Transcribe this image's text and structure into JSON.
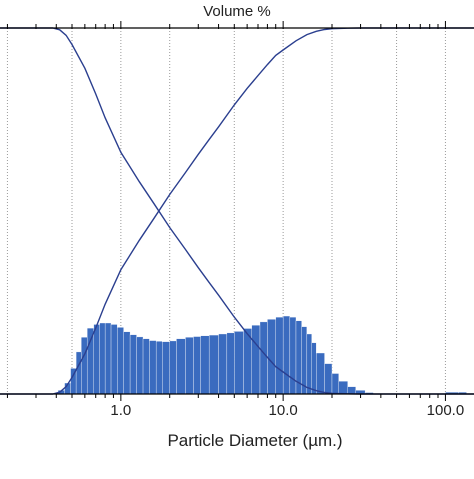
{
  "chart_data": {
    "type": "bar",
    "title": "Volume %",
    "xlabel": "Particle Diameter (µm.)",
    "ylabel": "",
    "x_scale": "log",
    "xlim": [
      0.18,
      150
    ],
    "ylim": [
      0,
      100
    ],
    "grid": "vertical dotted",
    "x_tick_labels": [
      "1.0",
      "10.0",
      "100.0"
    ],
    "x_tick_values": [
      1,
      10,
      100
    ],
    "colors": {
      "bars": "#3a6bbf",
      "curves": "#2b3f8f",
      "grid": "#9a9a9a",
      "frame": "#000000"
    },
    "bars": {
      "name": "",
      "x_start": 0.41,
      "x_end": 135,
      "x": [
        0.41,
        0.45,
        0.49,
        0.53,
        0.57,
        0.62,
        0.68,
        0.74,
        0.8,
        0.87,
        0.95,
        1.04,
        1.14,
        1.25,
        1.37,
        1.5,
        1.65,
        1.8,
        2.0,
        2.2,
        2.5,
        2.8,
        3.1,
        3.5,
        4.0,
        4.5,
        5.0,
        5.7,
        6.4,
        7.2,
        8.0,
        9.0,
        10.0,
        11.0,
        12.0,
        13.0,
        14.0,
        15.0,
        16.0,
        18.0,
        20.0,
        22.0,
        25.0,
        28.0,
        32.0,
        36.0,
        40.0,
        60.0,
        80.0,
        100.0,
        120.0
      ],
      "values": [
        1.0,
        3.0,
        7.0,
        11.5,
        15.5,
        18.0,
        19.0,
        19.4,
        19.4,
        19.0,
        18.2,
        17.0,
        16.2,
        15.6,
        15.1,
        14.6,
        14.4,
        14.3,
        14.5,
        15.1,
        15.5,
        15.7,
        15.9,
        16.1,
        16.4,
        16.7,
        17.1,
        17.9,
        18.8,
        19.7,
        20.4,
        21.0,
        21.3,
        21.0,
        20.0,
        18.4,
        16.4,
        14.0,
        11.2,
        8.3,
        5.6,
        3.5,
        2.0,
        1.0,
        0.4,
        0.1,
        0.0,
        0.0,
        0.0,
        0.5,
        0.5
      ]
    },
    "series": [
      {
        "name": "",
        "x": [
          0.18,
          0.38,
          0.42,
          0.46,
          0.5,
          0.6,
          0.7,
          0.8,
          1.0,
          1.3,
          1.6,
          2.0,
          2.5,
          3.0,
          3.5,
          4.0,
          5.0,
          6.0,
          7.0,
          8.0,
          9.0,
          10.0,
          12.0,
          14.0,
          16.0,
          18.0,
          20.0,
          25.0,
          30.0,
          40.0,
          60.0,
          100.0,
          150.0
        ],
        "values": [
          100.0,
          100.0,
          99.5,
          98.0,
          95.5,
          89.0,
          82.0,
          75.5,
          66.0,
          58.0,
          52.0,
          45.5,
          39.5,
          34.5,
          30.5,
          27.0,
          21.0,
          16.5,
          13.0,
          10.0,
          7.5,
          6.0,
          3.5,
          1.8,
          0.9,
          0.4,
          0.2,
          0.05,
          0.0,
          0.0,
          0.0,
          0.0,
          0.0
        ]
      },
      {
        "name": "",
        "x": [
          0.18,
          0.38,
          0.42,
          0.46,
          0.5,
          0.6,
          0.7,
          0.8,
          1.0,
          1.3,
          1.6,
          2.0,
          2.5,
          3.0,
          3.5,
          4.0,
          5.0,
          6.0,
          7.0,
          8.0,
          9.0,
          10.0,
          12.0,
          14.0,
          16.0,
          18.0,
          20.0,
          25.0,
          30.0,
          40.0,
          60.0,
          100.0,
          150.0
        ],
        "values": [
          0.0,
          0.0,
          0.5,
          2.0,
          4.5,
          11.0,
          18.0,
          24.5,
          34.0,
          42.0,
          48.0,
          54.5,
          60.5,
          65.5,
          69.5,
          73.0,
          79.0,
          83.5,
          87.0,
          90.0,
          92.5,
          94.0,
          96.5,
          98.2,
          99.1,
          99.6,
          99.8,
          99.95,
          100.0,
          100.0,
          100.0,
          100.0,
          100.0
        ]
      }
    ]
  }
}
